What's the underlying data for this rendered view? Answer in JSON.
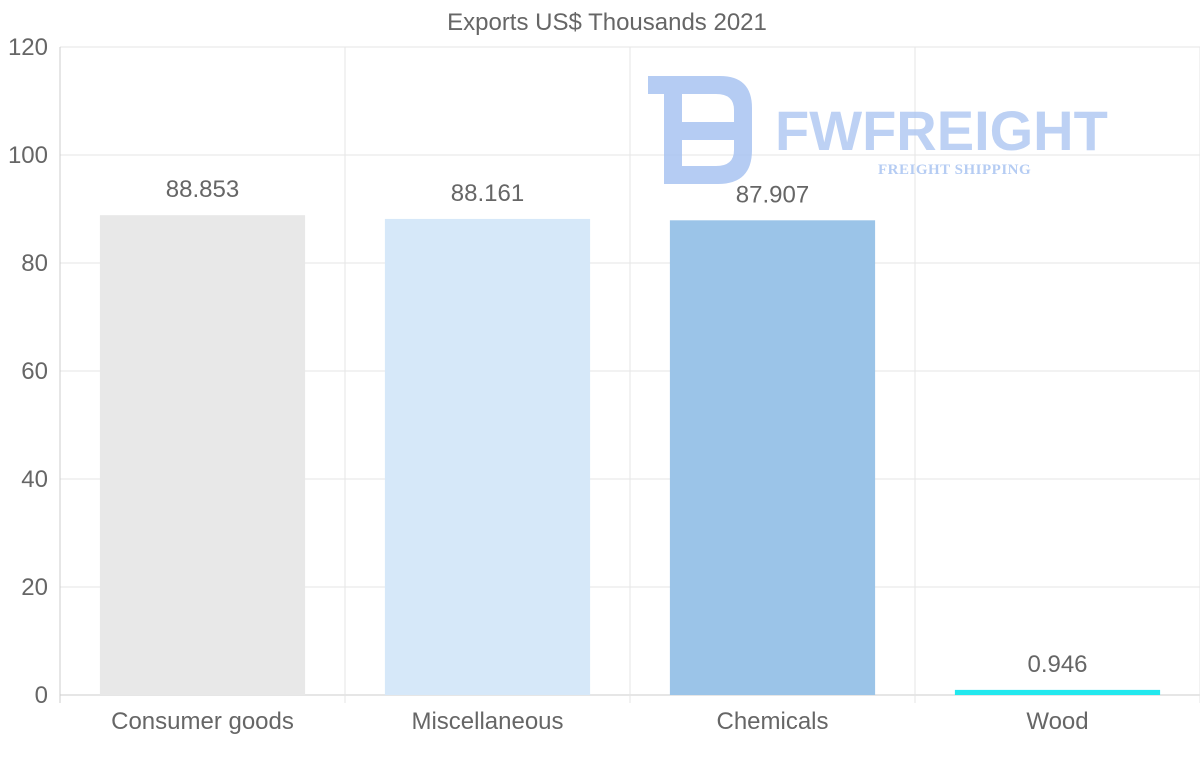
{
  "chart_data": {
    "type": "bar",
    "title": "Exports US$ Thousands 2021",
    "categories": [
      "Consumer goods",
      "Miscellaneous",
      "Chemicals",
      "Wood"
    ],
    "values": [
      88.853,
      88.161,
      87.907,
      0.946
    ],
    "value_labels": [
      "88.853",
      "88.161",
      "87.907",
      "0.946"
    ],
    "colors": [
      "#e8e8e8",
      "#d6e8f9",
      "#9bc4e8",
      "#22e8ee"
    ],
    "ylim": [
      0,
      120
    ],
    "yticks": [
      0,
      20,
      40,
      60,
      80,
      100,
      120
    ],
    "grid": true,
    "xlabel": "",
    "ylabel": ""
  },
  "watermark": {
    "brand": "FWFREIGHT",
    "tagline": "FREIGHT SHIPPING",
    "color": "#a9c4f1"
  }
}
